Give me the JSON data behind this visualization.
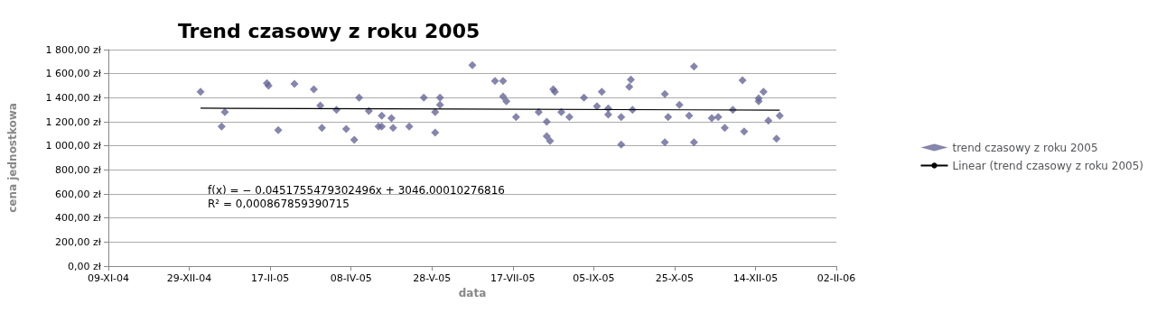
{
  "chart_data": {
    "type": "scatter",
    "title": "Trend czasowy z roku 2005",
    "xlabel": "data",
    "ylabel": "cena jednostkowa",
    "x": [
      "2005-01-05",
      "2005-01-18",
      "2005-01-20",
      "2005-02-15",
      "2005-02-16",
      "2005-02-22",
      "2005-03-04",
      "2005-03-16",
      "2005-03-20",
      "2005-03-21",
      "2005-03-30",
      "2005-04-05",
      "2005-04-10",
      "2005-04-13",
      "2005-04-19",
      "2005-04-25",
      "2005-04-27",
      "2005-04-27",
      "2005-05-03",
      "2005-05-04",
      "2005-05-14",
      "2005-05-23",
      "2005-05-30",
      "2005-05-30",
      "2005-06-02",
      "2005-06-02",
      "2005-06-22",
      "2005-07-06",
      "2005-07-11",
      "2005-07-11",
      "2005-07-13",
      "2005-07-19",
      "2005-08-02",
      "2005-08-07",
      "2005-08-07",
      "2005-08-09",
      "2005-08-11",
      "2005-08-12",
      "2005-08-16",
      "2005-08-21",
      "2005-08-30",
      "2005-09-07",
      "2005-09-10",
      "2005-09-14",
      "2005-09-14",
      "2005-09-22",
      "2005-09-22",
      "2005-09-27",
      "2005-09-28",
      "2005-09-29",
      "2005-10-19",
      "2005-10-19",
      "2005-10-21",
      "2005-10-28",
      "2005-11-03",
      "2005-11-06",
      "2005-11-06",
      "2005-11-17",
      "2005-11-21",
      "2005-11-25",
      "2005-11-30",
      "2005-12-06",
      "2005-12-07",
      "2005-12-16",
      "2005-12-16",
      "2005-12-19",
      "2005-12-22",
      "2005-12-27",
      "2005-12-29"
    ],
    "series": [
      {
        "name": "trend czasowy z roku 2005",
        "color": "#666699",
        "marker": "diamond",
        "values": [
          1450,
          1160,
          1280,
          1520,
          1500,
          1130,
          1515,
          1470,
          1335,
          1150,
          1300,
          1140,
          1050,
          1400,
          1290,
          1160,
          1160,
          1250,
          1230,
          1150,
          1160,
          1400,
          1280,
          1110,
          1400,
          1340,
          1670,
          1540,
          1540,
          1410,
          1370,
          1240,
          1280,
          1200,
          1080,
          1040,
          1470,
          1450,
          1280,
          1240,
          1400,
          1330,
          1450,
          1310,
          1260,
          1240,
          1010,
          1490,
          1550,
          1300,
          1430,
          1030,
          1240,
          1340,
          1250,
          1660,
          1030,
          1230,
          1240,
          1150,
          1300,
          1545,
          1120,
          1370,
          1395,
          1450,
          1210,
          1060,
          1250
        ]
      },
      {
        "name": "Linear (trend czasowy z roku 2005)",
        "type": "line",
        "color": "#000000",
        "marker": "none",
        "x": [
          "2005-01-05",
          "2005-12-29"
        ],
        "values": [
          1313,
          1297
        ]
      }
    ],
    "annotations": [
      "f(x) = − 0,0451755479302496x + 3046,00010276816",
      "R² = 0,000867859390715"
    ],
    "xlim": [
      "2004-11-09",
      "2006-02-02"
    ],
    "xticks": [
      {
        "value": "2004-11-09",
        "label": "09-XI-04"
      },
      {
        "value": "2004-12-29",
        "label": "29-XII-04"
      },
      {
        "value": "2005-02-17",
        "label": "17-II-05"
      },
      {
        "value": "2005-04-08",
        "label": "08-IV-05"
      },
      {
        "value": "2005-05-28",
        "label": "28-V-05"
      },
      {
        "value": "2005-07-17",
        "label": "17-VII-05"
      },
      {
        "value": "2005-09-05",
        "label": "05-IX-05"
      },
      {
        "value": "2005-10-25",
        "label": "25-X-05"
      },
      {
        "value": "2005-12-14",
        "label": "14-XII-05"
      },
      {
        "value": "2006-02-02",
        "label": "02-II-06"
      }
    ],
    "ylim": [
      0,
      1800
    ],
    "yticks": [
      {
        "value": 0,
        "label": "0,00 zł"
      },
      {
        "value": 200,
        "label": "200,00 zł"
      },
      {
        "value": 400,
        "label": "400,00 zł"
      },
      {
        "value": 600,
        "label": "600,00 zł"
      },
      {
        "value": 800,
        "label": "800,00 zł"
      },
      {
        "value": 1000,
        "label": "1 000,00 zł"
      },
      {
        "value": 1200,
        "label": "1 200,00 zł"
      },
      {
        "value": 1400,
        "label": "1 400,00 zł"
      },
      {
        "value": 1600,
        "label": "1 600,00 zł"
      },
      {
        "value": 1800,
        "label": "1 800,00 zł"
      }
    ],
    "grid": "y",
    "legend": "right"
  }
}
